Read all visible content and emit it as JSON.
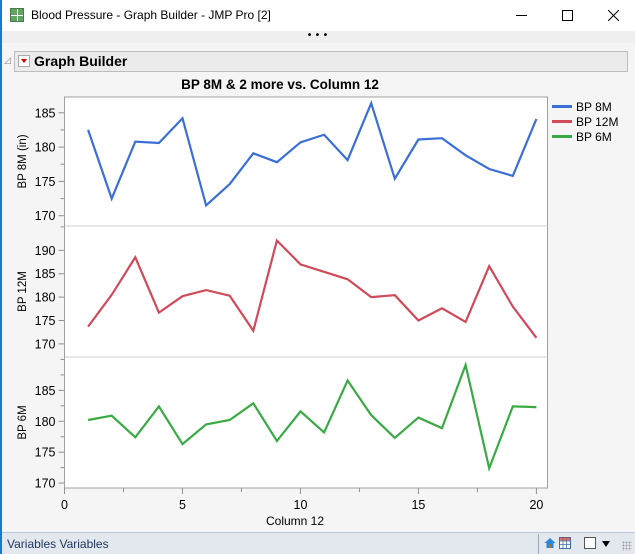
{
  "window": {
    "title": "Blood Pressure - Graph Builder - JMP Pro [2]",
    "minimize_icon": "minimize-icon",
    "maximize_icon": "maximize-icon",
    "close_icon": "close-icon",
    "dots": "•••"
  },
  "outline": {
    "title": "Graph Builder",
    "disclosure_icon": "◿",
    "menu_icon": "red-triangle-menu-icon"
  },
  "legend": {
    "items": [
      {
        "label": "BP 8M",
        "color": "#3b6fd6"
      },
      {
        "label": "BP 12M",
        "color": "#d04a5a"
      },
      {
        "label": "BP 6M",
        "color": "#3aaa44"
      }
    ]
  },
  "statusbar": {
    "text": "Variables  Variables",
    "icons": [
      "home-icon",
      "data-table-icon",
      "color-box",
      "dropdown-arrow-icon"
    ]
  },
  "chart_data": {
    "type": "line",
    "title": "BP 8M & 2 more vs. Column 12",
    "xlabel": "Column 12",
    "xlim": [
      0,
      20.47
    ],
    "xticks": [
      0,
      5,
      10,
      15,
      20
    ],
    "x": [
      1,
      2,
      3,
      4,
      5,
      6,
      7,
      8,
      9,
      10,
      11,
      12,
      13,
      14,
      15,
      16,
      17,
      18,
      19,
      20
    ],
    "legend_position": "right",
    "grid": false,
    "panels": [
      {
        "ylabel": "BP 8M (in)",
        "ylim": [
          168.5,
          187.3
        ],
        "yticks": [
          170,
          175,
          180,
          185
        ],
        "series": {
          "name": "BP 8M",
          "color": "#3b6fd6",
          "values": [
            182.5,
            172.5,
            180.8,
            180.6,
            184.2,
            171.5,
            174.6,
            179.1,
            177.8,
            180.7,
            181.8,
            178.1,
            186.4,
            175.4,
            181.1,
            181.3,
            178.8,
            176.8,
            175.8,
            184.1
          ]
        }
      },
      {
        "ylabel": "BP 12M",
        "ylim": [
          167.2,
          195.2
        ],
        "yticks": [
          170,
          175,
          180,
          185,
          190
        ],
        "series": {
          "name": "BP 12M",
          "color": "#d04a5a",
          "values": [
            173.7,
            180.5,
            188.5,
            176.7,
            180.2,
            181.5,
            180.3,
            172.8,
            192.1,
            187.0,
            185.4,
            183.8,
            180.0,
            180.4,
            175.0,
            177.6,
            174.7,
            186.6,
            178.0,
            171.3
          ]
        }
      },
      {
        "ylabel": "BP 6M",
        "ylim": [
          169.2,
          190.4
        ],
        "yticks": [
          170,
          175,
          180,
          185
        ],
        "series": {
          "name": "BP 6M",
          "color": "#3aaa44",
          "values": [
            180.2,
            180.9,
            177.4,
            182.4,
            176.3,
            179.5,
            180.2,
            182.9,
            176.8,
            181.6,
            178.2,
            186.6,
            181.0,
            177.3,
            180.6,
            178.9,
            189.1,
            172.4,
            182.4,
            182.3
          ]
        }
      }
    ]
  }
}
